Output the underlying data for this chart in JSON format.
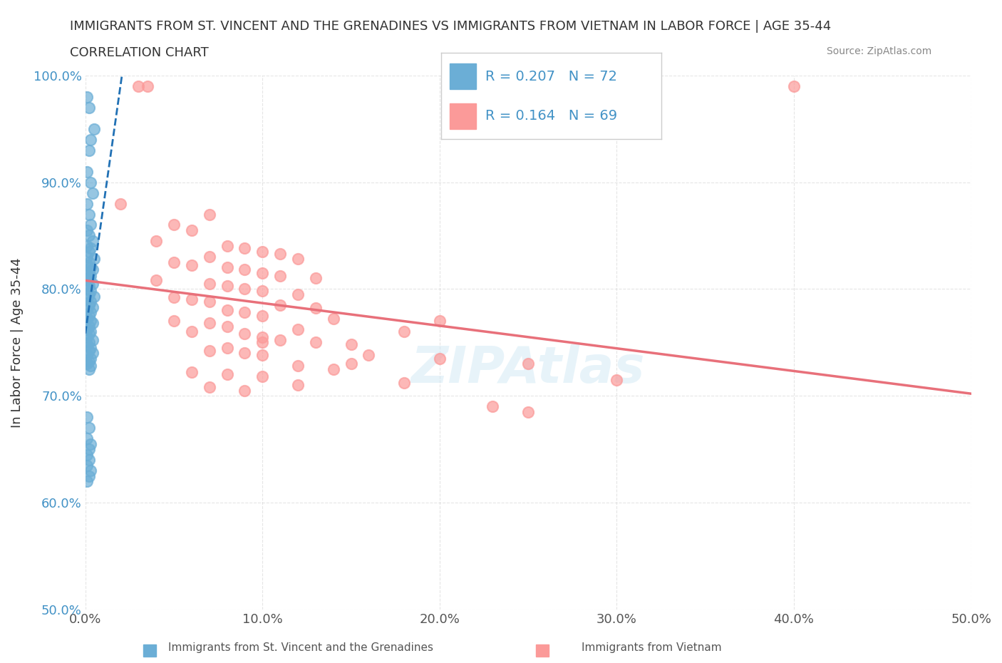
{
  "title_line1": "IMMIGRANTS FROM ST. VINCENT AND THE GRENADINES VS IMMIGRANTS FROM VIETNAM IN LABOR FORCE | AGE 35-44",
  "title_line2": "CORRELATION CHART",
  "source_text": "Source: ZipAtlas.com",
  "xlabel": "",
  "ylabel": "In Labor Force | Age 35-44",
  "xlim": [
    0.0,
    0.5
  ],
  "ylim": [
    0.5,
    1.0
  ],
  "xticks": [
    0.0,
    0.1,
    0.2,
    0.3,
    0.4,
    0.5
  ],
  "yticks": [
    0.5,
    0.6,
    0.7,
    0.8,
    0.9,
    1.0
  ],
  "xticklabels": [
    "0.0%",
    "10.0%",
    "20.0%",
    "30.0%",
    "40.0%",
    "50.0%"
  ],
  "yticklabels": [
    "50.0%",
    "60.0%",
    "70.0%",
    "80.0%",
    "90.0%",
    "100.0%"
  ],
  "blue_color": "#6baed6",
  "pink_color": "#fb9a99",
  "blue_R": 0.207,
  "blue_N": 72,
  "pink_R": 0.164,
  "pink_N": 69,
  "legend_R_color": "#4292c6",
  "blue_trend_color": "#2171b5",
  "pink_trend_color": "#e8707a",
  "blue_points": [
    [
      0.001,
      0.98
    ],
    [
      0.002,
      0.97
    ],
    [
      0.005,
      0.95
    ],
    [
      0.003,
      0.94
    ],
    [
      0.002,
      0.93
    ],
    [
      0.001,
      0.91
    ],
    [
      0.003,
      0.9
    ],
    [
      0.004,
      0.89
    ],
    [
      0.001,
      0.88
    ],
    [
      0.002,
      0.87
    ],
    [
      0.003,
      0.86
    ],
    [
      0.001,
      0.855
    ],
    [
      0.002,
      0.85
    ],
    [
      0.004,
      0.845
    ],
    [
      0.001,
      0.84
    ],
    [
      0.003,
      0.838
    ],
    [
      0.002,
      0.835
    ],
    [
      0.001,
      0.83
    ],
    [
      0.005,
      0.828
    ],
    [
      0.002,
      0.825
    ],
    [
      0.001,
      0.822
    ],
    [
      0.003,
      0.82
    ],
    [
      0.004,
      0.818
    ],
    [
      0.002,
      0.815
    ],
    [
      0.001,
      0.813
    ],
    [
      0.003,
      0.812
    ],
    [
      0.002,
      0.81
    ],
    [
      0.001,
      0.808
    ],
    [
      0.004,
      0.805
    ],
    [
      0.002,
      0.803
    ],
    [
      0.001,
      0.8
    ],
    [
      0.003,
      0.798
    ],
    [
      0.002,
      0.795
    ],
    [
      0.005,
      0.793
    ],
    [
      0.001,
      0.79
    ],
    [
      0.003,
      0.788
    ],
    [
      0.002,
      0.785
    ],
    [
      0.004,
      0.783
    ],
    [
      0.001,
      0.78
    ],
    [
      0.003,
      0.778
    ],
    [
      0.002,
      0.775
    ],
    [
      0.001,
      0.772
    ],
    [
      0.003,
      0.77
    ],
    [
      0.004,
      0.768
    ],
    [
      0.002,
      0.765
    ],
    [
      0.001,
      0.762
    ],
    [
      0.003,
      0.76
    ],
    [
      0.002,
      0.758
    ],
    [
      0.001,
      0.755
    ],
    [
      0.004,
      0.752
    ],
    [
      0.002,
      0.75
    ],
    [
      0.001,
      0.748
    ],
    [
      0.003,
      0.745
    ],
    [
      0.002,
      0.742
    ],
    [
      0.004,
      0.74
    ],
    [
      0.001,
      0.738
    ],
    [
      0.003,
      0.735
    ],
    [
      0.002,
      0.732
    ],
    [
      0.001,
      0.73
    ],
    [
      0.003,
      0.728
    ],
    [
      0.002,
      0.725
    ],
    [
      0.001,
      0.68
    ],
    [
      0.002,
      0.67
    ],
    [
      0.001,
      0.66
    ],
    [
      0.003,
      0.655
    ],
    [
      0.002,
      0.65
    ],
    [
      0.001,
      0.645
    ],
    [
      0.002,
      0.64
    ],
    [
      0.001,
      0.635
    ],
    [
      0.003,
      0.63
    ],
    [
      0.002,
      0.625
    ],
    [
      0.001,
      0.62
    ]
  ],
  "pink_points": [
    [
      0.03,
      0.99
    ],
    [
      0.035,
      0.99
    ],
    [
      0.02,
      0.88
    ],
    [
      0.07,
      0.87
    ],
    [
      0.05,
      0.86
    ],
    [
      0.06,
      0.855
    ],
    [
      0.04,
      0.845
    ],
    [
      0.08,
      0.84
    ],
    [
      0.09,
      0.838
    ],
    [
      0.1,
      0.835
    ],
    [
      0.11,
      0.833
    ],
    [
      0.07,
      0.83
    ],
    [
      0.12,
      0.828
    ],
    [
      0.05,
      0.825
    ],
    [
      0.06,
      0.822
    ],
    [
      0.08,
      0.82
    ],
    [
      0.09,
      0.818
    ],
    [
      0.1,
      0.815
    ],
    [
      0.11,
      0.812
    ],
    [
      0.13,
      0.81
    ],
    [
      0.04,
      0.808
    ],
    [
      0.07,
      0.805
    ],
    [
      0.08,
      0.803
    ],
    [
      0.09,
      0.8
    ],
    [
      0.1,
      0.798
    ],
    [
      0.12,
      0.795
    ],
    [
      0.05,
      0.792
    ],
    [
      0.06,
      0.79
    ],
    [
      0.07,
      0.788
    ],
    [
      0.11,
      0.785
    ],
    [
      0.13,
      0.782
    ],
    [
      0.08,
      0.78
    ],
    [
      0.09,
      0.778
    ],
    [
      0.1,
      0.775
    ],
    [
      0.14,
      0.772
    ],
    [
      0.05,
      0.77
    ],
    [
      0.07,
      0.768
    ],
    [
      0.08,
      0.765
    ],
    [
      0.12,
      0.762
    ],
    [
      0.06,
      0.76
    ],
    [
      0.09,
      0.758
    ],
    [
      0.1,
      0.755
    ],
    [
      0.11,
      0.752
    ],
    [
      0.13,
      0.75
    ],
    [
      0.15,
      0.748
    ],
    [
      0.08,
      0.745
    ],
    [
      0.07,
      0.742
    ],
    [
      0.09,
      0.74
    ],
    [
      0.1,
      0.738
    ],
    [
      0.16,
      0.738
    ],
    [
      0.2,
      0.735
    ],
    [
      0.25,
      0.73
    ],
    [
      0.12,
      0.728
    ],
    [
      0.14,
      0.725
    ],
    [
      0.06,
      0.722
    ],
    [
      0.08,
      0.72
    ],
    [
      0.1,
      0.718
    ],
    [
      0.3,
      0.715
    ],
    [
      0.18,
      0.712
    ],
    [
      0.12,
      0.71
    ],
    [
      0.07,
      0.708
    ],
    [
      0.09,
      0.705
    ],
    [
      0.23,
      0.69
    ],
    [
      0.25,
      0.685
    ],
    [
      0.1,
      0.75
    ],
    [
      0.2,
      0.77
    ],
    [
      0.4,
      0.99
    ],
    [
      0.15,
      0.73
    ],
    [
      0.18,
      0.76
    ]
  ],
  "legend_blue_label": "R = 0.207   N = 72",
  "legend_pink_label": "R = 0.164   N = 69",
  "bottom_label_blue": "Immigrants from St. Vincent and the Grenadines",
  "bottom_label_pink": "Immigrants from Vietnam"
}
